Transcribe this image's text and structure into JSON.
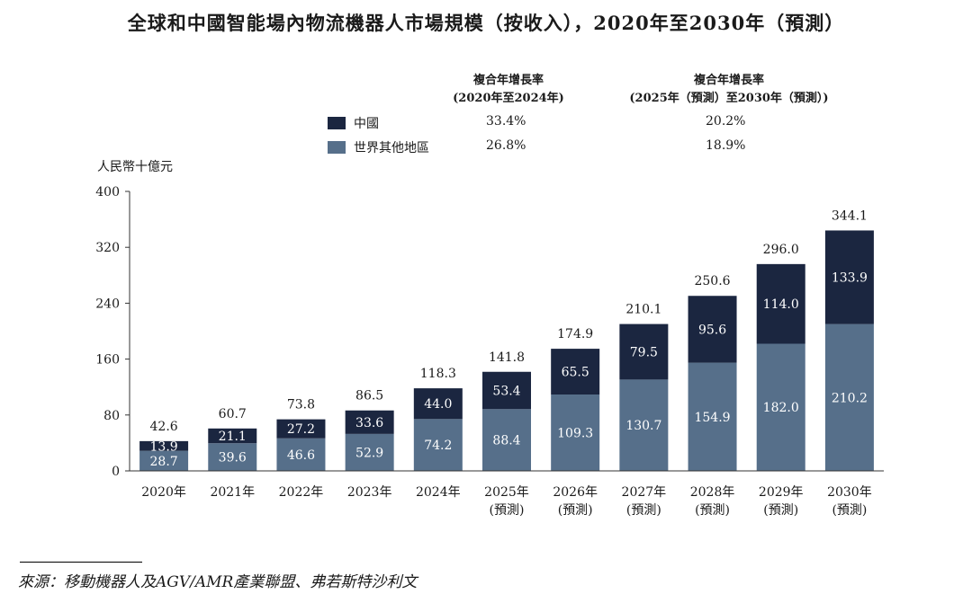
{
  "title": "全球和中國智能場內物流機器人市場規模（按收入），2020年至2030年（預測）",
  "cagr": {
    "header1": [
      "複合年增長率",
      "(2020年至2024年)"
    ],
    "header2": [
      "複合年增長率",
      "(2025年（預測）至2030年（預測）)"
    ],
    "rows": [
      {
        "label": "中國",
        "cagr1": "33.4%",
        "cagr2": "20.2%",
        "color": "#1b2640"
      },
      {
        "label": "世界其他地區",
        "cagr1": "26.8%",
        "cagr2": "18.9%",
        "color": "#566f8a"
      }
    ]
  },
  "chart_data": {
    "type": "bar",
    "stacked": true,
    "ylabel": "人民幣十億元",
    "ylim": [
      0,
      400
    ],
    "yticks": [
      0,
      80,
      160,
      240,
      320,
      400
    ],
    "categories": [
      [
        "2020年"
      ],
      [
        "2021年"
      ],
      [
        "2022年"
      ],
      [
        "2023年"
      ],
      [
        "2024年"
      ],
      [
        "2025年",
        "(預測)"
      ],
      [
        "2026年",
        "(預測)"
      ],
      [
        "2027年",
        "(預測)"
      ],
      [
        "2028年",
        "(預測)"
      ],
      [
        "2029年",
        "(預測)"
      ],
      [
        "2030年",
        "(預測)"
      ]
    ],
    "series": [
      {
        "name": "世界其他地區",
        "color": "#566f8a",
        "values": [
          28.7,
          39.6,
          46.6,
          52.9,
          74.2,
          88.4,
          109.3,
          130.7,
          154.9,
          182.0,
          210.2
        ]
      },
      {
        "name": "中國",
        "color": "#1b2640",
        "values": [
          13.9,
          21.1,
          27.2,
          33.6,
          44.0,
          53.4,
          65.5,
          79.5,
          95.6,
          114.0,
          133.9
        ]
      }
    ],
    "totals": [
      42.6,
      60.7,
      73.8,
      86.5,
      118.3,
      141.8,
      174.9,
      210.1,
      250.6,
      296.0,
      344.1
    ],
    "grid": false,
    "legend": "top"
  },
  "source": "來源：移動機器人及AGV/AMR產業聯盟、弗若斯特沙利文"
}
